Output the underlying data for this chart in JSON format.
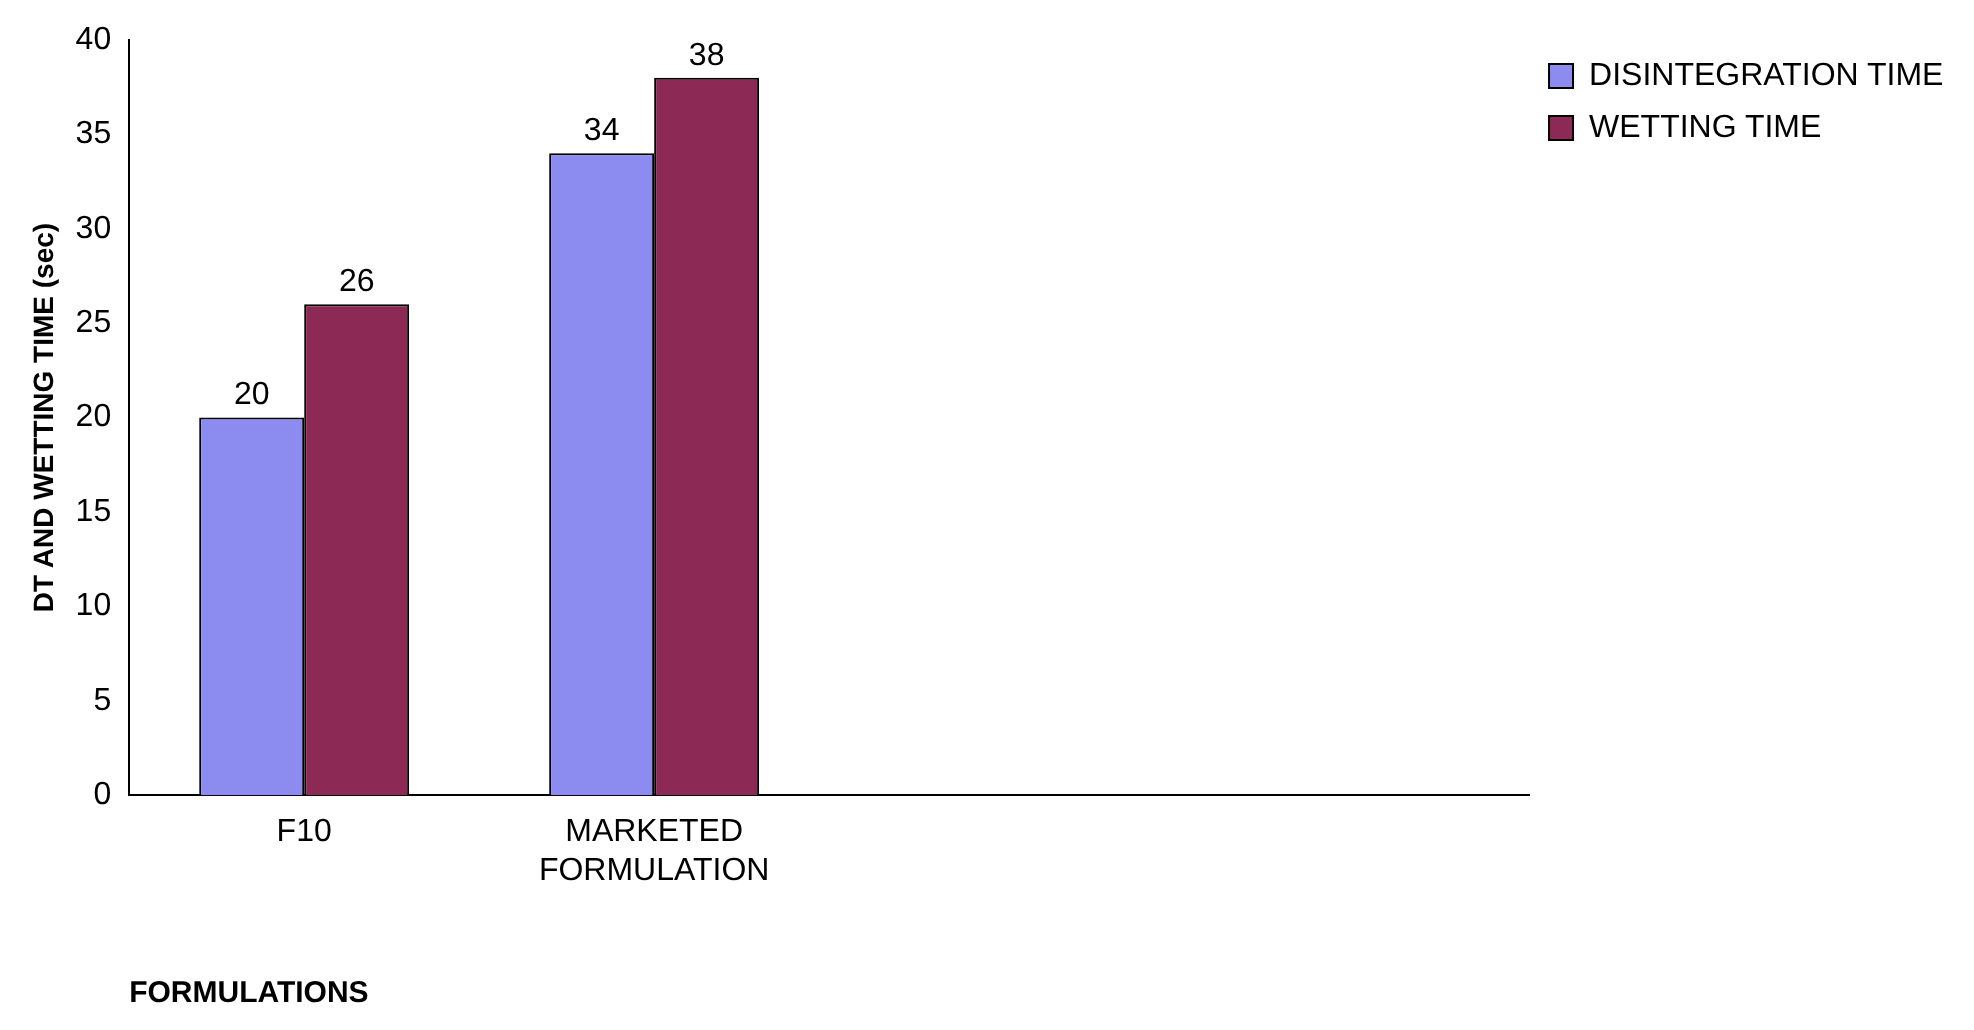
{
  "chart_data": {
    "type": "bar",
    "xlabel": "FORMULATIONS",
    "ylabel": "DT AND WETTING TIME (sec)",
    "categories": [
      "F10",
      "MARKETED FORMULATION",
      null,
      null
    ],
    "series": [
      {
        "name": "DISINTEGRATION TIME",
        "color": "#8c8cf0",
        "values": [
          20,
          34,
          null,
          null
        ]
      },
      {
        "name": "WETTING TIME",
        "color": "#8c2a55",
        "values": [
          26,
          38,
          null,
          null
        ]
      }
    ],
    "ylim": [
      0,
      40
    ],
    "yticks": [
      0,
      5,
      10,
      15,
      20,
      25,
      30,
      35,
      40
    ],
    "grid": false,
    "legend": "top right",
    "data_labels": true
  }
}
